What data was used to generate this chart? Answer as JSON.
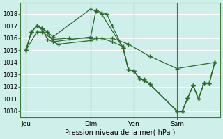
{
  "bg_color": "#cff0ea",
  "grid_color": "#ffffff",
  "line_color": "#2d6a2d",
  "marker": "+",
  "markersize": 4,
  "linewidth": 0.9,
  "xlabel": "Pression niveau de la mer( hPa )",
  "ylim": [
    1009.5,
    1018.9
  ],
  "yticks": [
    1010,
    1011,
    1012,
    1013,
    1014,
    1015,
    1016,
    1017,
    1018
  ],
  "xtick_labels": [
    "Jeu",
    "Dim",
    "Ven",
    "Sam"
  ],
  "xtick_positions": [
    0,
    72,
    120,
    168
  ],
  "xlim": [
    -6,
    216
  ],
  "vlines": [
    0,
    72,
    120,
    168
  ],
  "series": [
    [
      0,
      1015.0,
      6,
      1016.5,
      12,
      1017.0,
      18,
      1016.8,
      24,
      1016.5,
      30,
      1015.7,
      72,
      1016.1,
      78,
      1018.3,
      84,
      1018.1,
      90,
      1018.0,
      96,
      1017.0,
      108,
      1015.2,
      114,
      1013.4,
      120,
      1013.3,
      126,
      1012.7,
      132,
      1012.6,
      138,
      1012.2,
      168,
      1010.0,
      174,
      1010.0,
      180,
      1011.1,
      186,
      1012.1,
      192,
      1011.0,
      198,
      1012.3,
      204,
      1012.3,
      210,
      1014.0
    ],
    [
      0,
      1015.0,
      6,
      1016.5,
      12,
      1017.0,
      18,
      1016.8,
      24,
      1016.5,
      30,
      1016.1,
      72,
      1018.4,
      78,
      1018.2,
      84,
      1018.0,
      108,
      1015.2,
      114,
      1013.4,
      120,
      1013.3,
      126,
      1012.7,
      132,
      1012.5,
      138,
      1012.2,
      168,
      1010.0,
      174,
      1010.0,
      180,
      1011.1,
      186,
      1012.1,
      192,
      1011.0,
      198,
      1012.3,
      204,
      1012.3,
      210,
      1014.0
    ],
    [
      0,
      1015.0,
      6,
      1016.5,
      12,
      1017.0,
      18,
      1016.8,
      24,
      1015.9,
      36,
      1015.5,
      72,
      1015.8,
      78,
      1016.0,
      84,
      1016.0,
      96,
      1015.7,
      108,
      1015.3,
      114,
      1013.4,
      120,
      1013.3,
      126,
      1012.7,
      132,
      1012.5,
      138,
      1012.2,
      168,
      1010.0,
      174,
      1010.0,
      180,
      1011.1,
      186,
      1012.1,
      192,
      1011.0,
      198,
      1012.3,
      204,
      1012.3,
      210,
      1014.0
    ],
    [
      0,
      1015.0,
      12,
      1016.5,
      18,
      1016.5,
      30,
      1015.9,
      48,
      1016.0,
      72,
      1016.0,
      96,
      1016.0,
      114,
      1015.5,
      138,
      1014.5,
      168,
      1013.5,
      210,
      1014.0
    ]
  ]
}
